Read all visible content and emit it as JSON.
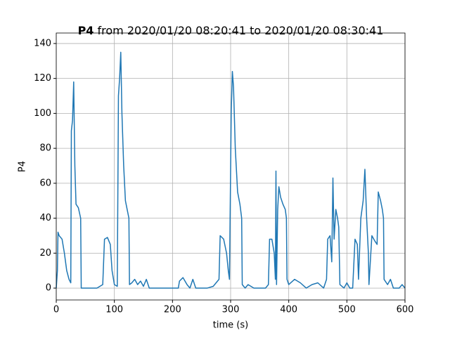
{
  "chart_data": {
    "type": "line",
    "title_bold": "P4",
    "title": "from 2020/01/20 08:20:41 to 2020/01/20 08:30:41",
    "xlabel": "time (s)",
    "ylabel": "P4",
    "x": [
      0,
      2,
      3,
      5,
      10,
      14,
      18,
      22,
      25,
      26,
      28,
      30,
      32,
      34,
      38,
      42,
      43,
      50,
      60,
      70,
      80,
      83,
      88,
      93,
      96,
      100,
      105,
      107,
      109,
      111,
      113,
      116,
      119,
      122,
      125,
      126,
      130,
      135,
      140,
      145,
      150,
      155,
      160,
      170,
      180,
      190,
      200,
      210,
      212,
      218,
      225,
      230,
      235,
      240,
      250,
      260,
      270,
      280,
      282,
      288,
      293,
      296,
      298,
      301,
      303,
      305,
      308,
      312,
      316,
      319,
      320,
      325,
      330,
      340,
      350,
      360,
      365,
      367,
      371,
      375,
      377,
      378,
      379,
      381,
      383,
      386,
      390,
      394,
      396,
      397,
      400,
      410,
      420,
      430,
      440,
      450,
      460,
      465,
      467,
      471,
      474,
      476,
      478,
      481,
      484,
      486,
      488,
      495,
      500,
      505,
      510,
      514,
      518,
      520,
      524,
      528,
      531,
      534,
      537,
      538,
      543,
      548,
      552,
      554,
      558,
      561,
      563,
      564,
      570,
      575,
      580,
      590,
      595,
      600
    ],
    "series": [
      {
        "name": "P4",
        "color": "#1f77b4",
        "values": [
          0,
          10,
          32,
          30,
          28,
          20,
          10,
          5,
          3,
          90,
          96,
          118,
          70,
          48,
          46,
          40,
          0,
          0,
          0,
          0,
          2,
          28,
          29,
          25,
          10,
          2,
          1,
          110,
          120,
          135,
          100,
          70,
          50,
          45,
          40,
          2,
          3,
          5,
          2,
          4,
          1,
          5,
          0,
          0,
          0,
          0,
          0,
          0,
          4,
          6,
          2,
          0,
          5,
          0,
          0,
          0,
          1,
          5,
          30,
          28,
          20,
          10,
          5,
          100,
          124,
          115,
          80,
          55,
          48,
          40,
          2,
          0,
          2,
          0,
          0,
          0,
          2,
          28,
          28,
          20,
          5,
          67,
          2,
          45,
          58,
          52,
          48,
          45,
          40,
          5,
          2,
          5,
          3,
          0,
          2,
          3,
          0,
          5,
          28,
          30,
          15,
          63,
          28,
          45,
          40,
          35,
          2,
          0,
          3,
          0,
          0,
          28,
          25,
          5,
          40,
          50,
          68,
          40,
          20,
          2,
          30,
          27,
          25,
          55,
          50,
          45,
          40,
          5,
          2,
          5,
          0,
          0,
          2,
          0
        ]
      }
    ],
    "xlim": [
      0,
      600
    ],
    "ylim": [
      -6.8,
      146
    ],
    "xticks": [
      0,
      100,
      200,
      300,
      400,
      500,
      600
    ],
    "yticks": [
      0,
      20,
      40,
      60,
      80,
      100,
      120,
      140
    ],
    "grid": true
  }
}
